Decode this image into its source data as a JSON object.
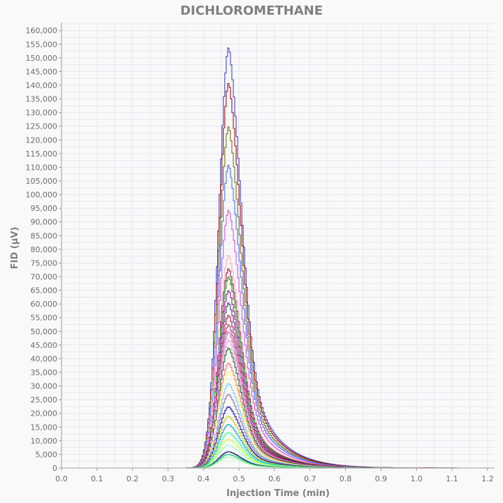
{
  "chart_data": {
    "type": "line",
    "title": "DICHLOROMETHANE",
    "xlabel": "Injection Time (min)",
    "ylabel": "FID (µV)",
    "xlim": [
      0,
      1.22
    ],
    "ylim": [
      0,
      163000
    ],
    "xticks": [
      0.0,
      0.1,
      0.2,
      0.3,
      0.4,
      0.5,
      0.6,
      0.7,
      0.8,
      0.9,
      1.0,
      1.1,
      1.2
    ],
    "xtick_labels": [
      "0.0",
      "0.1",
      "0.2",
      "0.3",
      "0.4",
      "0.5",
      "0.6",
      "0.7",
      "0.8",
      "0.9",
      "1.0",
      "1.1",
      "1.2"
    ],
    "yticks": [
      0,
      5000,
      10000,
      15000,
      20000,
      25000,
      30000,
      35000,
      40000,
      45000,
      50000,
      55000,
      60000,
      65000,
      70000,
      75000,
      80000,
      85000,
      90000,
      95000,
      100000,
      105000,
      110000,
      115000,
      120000,
      125000,
      130000,
      135000,
      140000,
      145000,
      150000,
      155000,
      160000
    ],
    "ytick_labels": [
      "0",
      "5,000",
      "10,000",
      "15,000",
      "20,000",
      "25,000",
      "30,000",
      "35,000",
      "40,000",
      "45,000",
      "50,000",
      "55,000",
      "60,000",
      "65,000",
      "70,000",
      "75,000",
      "80,000",
      "85,000",
      "90,000",
      "95,000",
      "100,000",
      "105,000",
      "110,000",
      "115,000",
      "120,000",
      "125,000",
      "130,000",
      "135,000",
      "140,000",
      "145,000",
      "150,000",
      "155,000",
      "160,000"
    ],
    "grid": true,
    "peak_time": 0.47,
    "x_range": [
      0.0,
      1.165
    ],
    "series": [
      {
        "peak": 154000,
        "color": "#3333cc"
      },
      {
        "peak": 141000,
        "color": "#990000"
      },
      {
        "peak": 125000,
        "color": "#666600"
      },
      {
        "peak": 111000,
        "color": "#3366ff"
      },
      {
        "peak": 94500,
        "color": "#dd44dd"
      },
      {
        "peak": 78000,
        "color": "#ffaaaa"
      },
      {
        "peak": 73000,
        "color": "#990033"
      },
      {
        "peak": 70000,
        "color": "#009900"
      },
      {
        "peak": 65000,
        "color": "#990099"
      },
      {
        "peak": 60500,
        "color": "#333366"
      },
      {
        "peak": 56000,
        "color": "#cc0033"
      },
      {
        "peak": 52500,
        "color": "#993366"
      },
      {
        "peak": 50000,
        "color": "#cc66cc"
      },
      {
        "peak": 47000,
        "color": "#ff88ff"
      },
      {
        "peak": 44000,
        "color": "#006600"
      },
      {
        "peak": 38500,
        "color": "#ff6666"
      },
      {
        "peak": 35500,
        "color": "#ffff66"
      },
      {
        "peak": 31000,
        "color": "#66ccff"
      },
      {
        "peak": 27000,
        "color": "#996699"
      },
      {
        "peak": 22500,
        "color": "#000099"
      },
      {
        "peak": 19000,
        "color": "#cccc00"
      },
      {
        "peak": 16000,
        "color": "#00aacc"
      },
      {
        "peak": 13000,
        "color": "#33ff99"
      },
      {
        "peak": 10500,
        "color": "#ccff33"
      },
      {
        "peak": 8500,
        "color": "#99ffcc"
      },
      {
        "peak": 6000,
        "color": "#000066"
      },
      {
        "peak": 5000,
        "color": "#00cc66"
      },
      {
        "peak": 4000,
        "color": "#99ff99"
      }
    ],
    "colors": {
      "background": "#f9f9f9",
      "grid": "#e6e6f2",
      "text": "#7f7f7f",
      "baseline": "#8b8b00"
    }
  }
}
